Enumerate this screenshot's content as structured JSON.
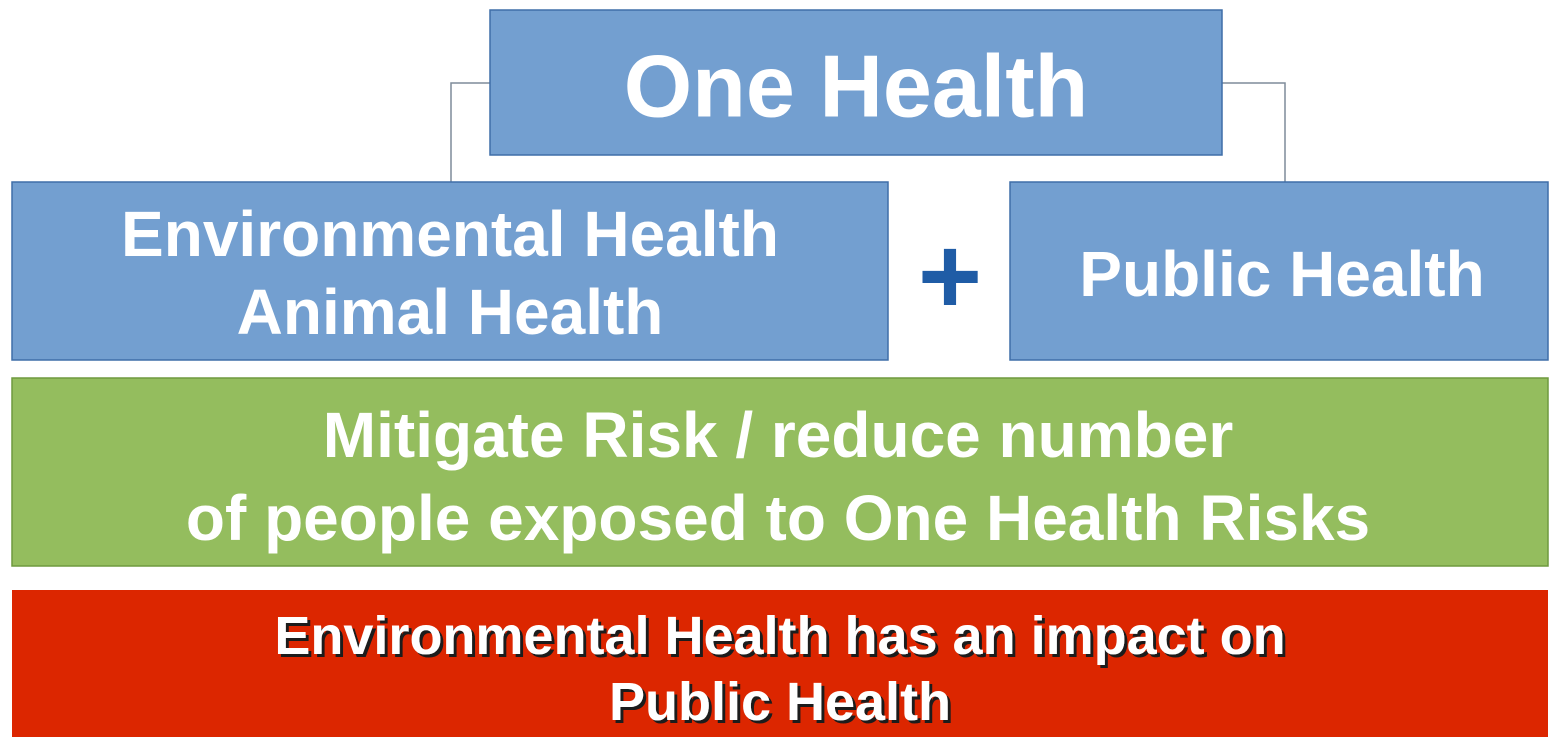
{
  "nodes": [
    {
      "label": "One Health"
    },
    {
      "lines": [
        "Environmental Health",
        "Animal Health"
      ]
    },
    {
      "label": "+"
    },
    {
      "label": "Public Health"
    },
    {
      "lines": [
        "Mitigate Risk / reduce number",
        "of people exposed to One Health Risks"
      ]
    },
    {
      "lines": [
        "Environmental Health has an impact on",
        "Public Health"
      ]
    }
  ]
}
